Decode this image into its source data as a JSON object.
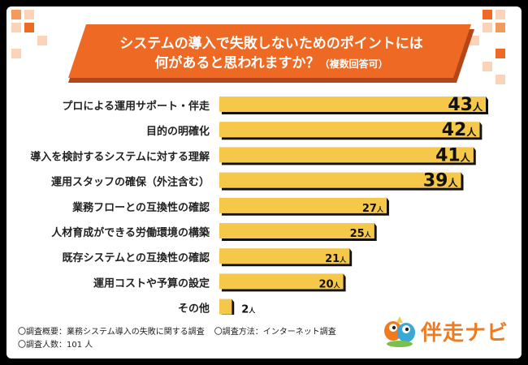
{
  "title": {
    "line1": "システムの導入で失敗しないためのポイントには",
    "line2": "何があると思われますか？",
    "note": "（複数回答可）"
  },
  "chart_data": {
    "type": "bar",
    "orientation": "horizontal",
    "title": "システムの導入で失敗しないためのポイントには何があると思われますか？（複数回答可）",
    "categories": [
      "プロによる運用サポート・伴走",
      "目的の明確化",
      "導入を検討するシステムに対する理解",
      "運用スタッフの確保（外注含む）",
      "業務フローとの互換性の確認",
      "人材育成ができる労働環境の構築",
      "既存システムとの互換性の確認",
      "運用コストや予算の設定",
      "その他"
    ],
    "values": [
      43,
      42,
      41,
      39,
      27,
      25,
      21,
      20,
      2
    ],
    "unit": "人",
    "xlim": [
      0,
      43
    ]
  },
  "footer": {
    "overview": "〇調査概要：業務システム導入の失敗に関する調査",
    "method": "〇調査方法：インターネット調査",
    "respondents": "〇調査人数：101 人"
  },
  "logo": {
    "text": "伴走ナビ"
  },
  "colors": {
    "bar": "#f5c84a",
    "shadow": "#111111",
    "banner": "#ee6a24",
    "banner_dark": "#b5461a",
    "square_light": "#fbd3b8",
    "square_mid": "#f39a5c",
    "square_dark": "#ee6a24"
  }
}
